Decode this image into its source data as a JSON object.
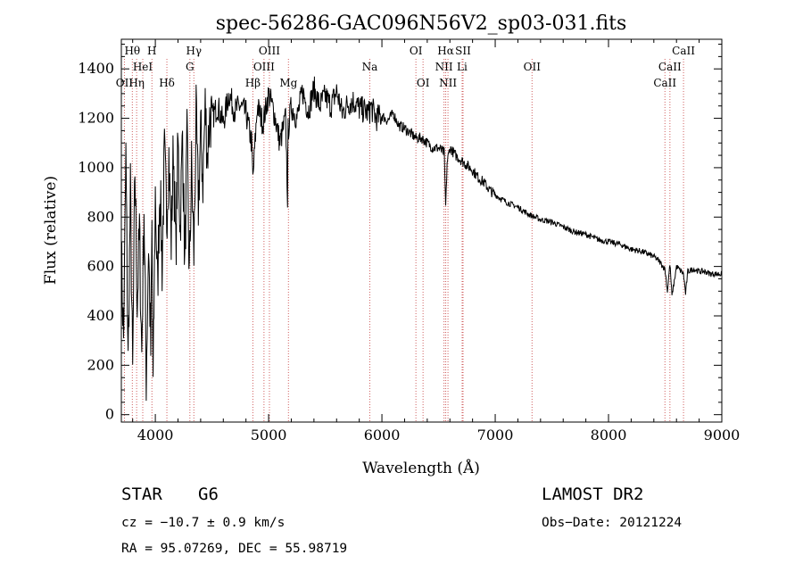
{
  "chart_data": {
    "type": "line",
    "title": "spec-56286-GAC096N56V2_sp03-031.fits",
    "xlabel": "Wavelength (Å)",
    "ylabel": "Flux (relative)",
    "xlim": [
      3700,
      9000
    ],
    "ylim": [
      -30,
      1520
    ],
    "xticks": [
      4000,
      5000,
      6000,
      7000,
      8000,
      9000
    ],
    "yticks": [
      0,
      200,
      400,
      600,
      800,
      1000,
      1200,
      1400
    ],
    "grid": false,
    "series": [
      {
        "x": [
          3700,
          3720,
          3740,
          3760,
          3780,
          3800,
          3820,
          3840,
          3860,
          3880,
          3900,
          3920,
          3940,
          3960,
          3970,
          3980,
          4000,
          4020,
          4040,
          4060,
          4080,
          4100,
          4120,
          4140,
          4160,
          4180,
          4200,
          4220,
          4240,
          4260,
          4280,
          4300,
          4320,
          4340,
          4360,
          4380,
          4400,
          4420,
          4440,
          4460,
          4480,
          4500,
          4550,
          4600,
          4650,
          4700,
          4750,
          4800,
          4850,
          4861,
          4900,
          4950,
          5000,
          5050,
          5100,
          5150,
          5167,
          5172,
          5200,
          5250,
          5300,
          5350,
          5400,
          5450,
          5500,
          5550,
          5600,
          5650,
          5700,
          5750,
          5800,
          5850,
          5890,
          5900,
          5950,
          6000,
          6050,
          6100,
          6150,
          6200,
          6250,
          6300,
          6350,
          6400,
          6450,
          6500,
          6550,
          6563,
          6575,
          6600,
          6650,
          6700,
          6750,
          6800,
          6850,
          6900,
          6950,
          7000,
          7100,
          7200,
          7300,
          7400,
          7500,
          7600,
          7700,
          7800,
          7900,
          8000,
          8100,
          8200,
          8300,
          8400,
          8450,
          8498,
          8520,
          8542,
          8560,
          8600,
          8662,
          8680,
          8700,
          8750,
          8800,
          8850,
          8900,
          8950,
          9000
        ],
        "values": [
          650,
          300,
          1050,
          200,
          900,
          150,
          1000,
          450,
          750,
          250,
          850,
          150,
          700,
          250,
          750,
          100,
          900,
          500,
          950,
          600,
          1050,
          800,
          1050,
          700,
          1100,
          650,
          1100,
          750,
          1150,
          600,
          1100,
          550,
          1000,
          650,
          1200,
          850,
          1150,
          950,
          1250,
          1050,
          1200,
          1200,
          1250,
          1180,
          1300,
          1230,
          1250,
          1220,
          1100,
          950,
          1250,
          1180,
          1300,
          1220,
          1100,
          1200,
          880,
          1150,
          1250,
          1200,
          1310,
          1230,
          1320,
          1250,
          1290,
          1250,
          1310,
          1220,
          1260,
          1270,
          1240,
          1230,
          1220,
          1250,
          1200,
          1210,
          1190,
          1220,
          1170,
          1160,
          1140,
          1120,
          1120,
          1100,
          1080,
          1080,
          1060,
          840,
          1020,
          1080,
          1050,
          1030,
          1010,
          990,
          960,
          940,
          910,
          890,
          860,
          840,
          810,
          790,
          780,
          760,
          740,
          730,
          710,
          700,
          690,
          670,
          660,
          640,
          620,
          590,
          500,
          610,
          480,
          600,
          570,
          490,
          580,
          590,
          580,
          580,
          570,
          570,
          570
        ]
      }
    ],
    "annotations": [
      {
        "label": "Hθ",
        "x": 3797,
        "row": 1
      },
      {
        "label": "H",
        "x": 3970,
        "row": 1
      },
      {
        "label": "HeI",
        "x": 3889,
        "row": 2
      },
      {
        "label": "OII",
        "x": 3727,
        "row": 3
      },
      {
        "label": "Hη",
        "x": 3835,
        "row": 3
      },
      {
        "label": "Hδ",
        "x": 4102,
        "row": 3
      },
      {
        "label": "Hγ",
        "x": 4340,
        "row": 1
      },
      {
        "label": "G",
        "x": 4305,
        "row": 2
      },
      {
        "label": "OIII",
        "x": 5007,
        "row": 1
      },
      {
        "label": "OIII",
        "x": 4959,
        "row": 2
      },
      {
        "label": "Hβ",
        "x": 4861,
        "row": 3
      },
      {
        "label": "Mg",
        "x": 5175,
        "row": 3
      },
      {
        "label": "Na",
        "x": 5893,
        "row": 2
      },
      {
        "label": "OI",
        "x": 6300,
        "row": 1
      },
      {
        "label": "OI",
        "x": 6363,
        "row": 3
      },
      {
        "label": "Hα",
        "x": 6563,
        "row": 1
      },
      {
        "label": "SII",
        "x": 6716,
        "row": 1
      },
      {
        "label": "NII",
        "x": 6548,
        "row": 2
      },
      {
        "label": "Li",
        "x": 6708,
        "row": 2
      },
      {
        "label": "NII",
        "x": 6583,
        "row": 3
      },
      {
        "label": "OII",
        "x": 7325,
        "row": 2
      },
      {
        "label": "CaII",
        "x": 8662,
        "row": 1
      },
      {
        "label": "CaII",
        "x": 8542,
        "row": 2
      },
      {
        "label": "CaII",
        "x": 8498,
        "row": 3
      }
    ],
    "line_markers": [
      3727,
      3797,
      3835,
      3889,
      3970,
      4102,
      4305,
      4340,
      4861,
      4959,
      5007,
      5175,
      5893,
      6300,
      6363,
      6548,
      6563,
      6583,
      6708,
      6716,
      7325,
      8498,
      8542,
      8662
    ]
  },
  "info": {
    "class_label": "STAR",
    "subclass": "G6",
    "survey": "LAMOST DR2",
    "cz": "cz = −10.7 ± 0.9 km/s",
    "obs_date": "Obs−Date: 20121224",
    "radec": "RA =  95.07269, DEC =  55.98719"
  },
  "colors": {
    "spectrum": "#000000",
    "line_marker": "#d06060",
    "axes": "#000000"
  }
}
